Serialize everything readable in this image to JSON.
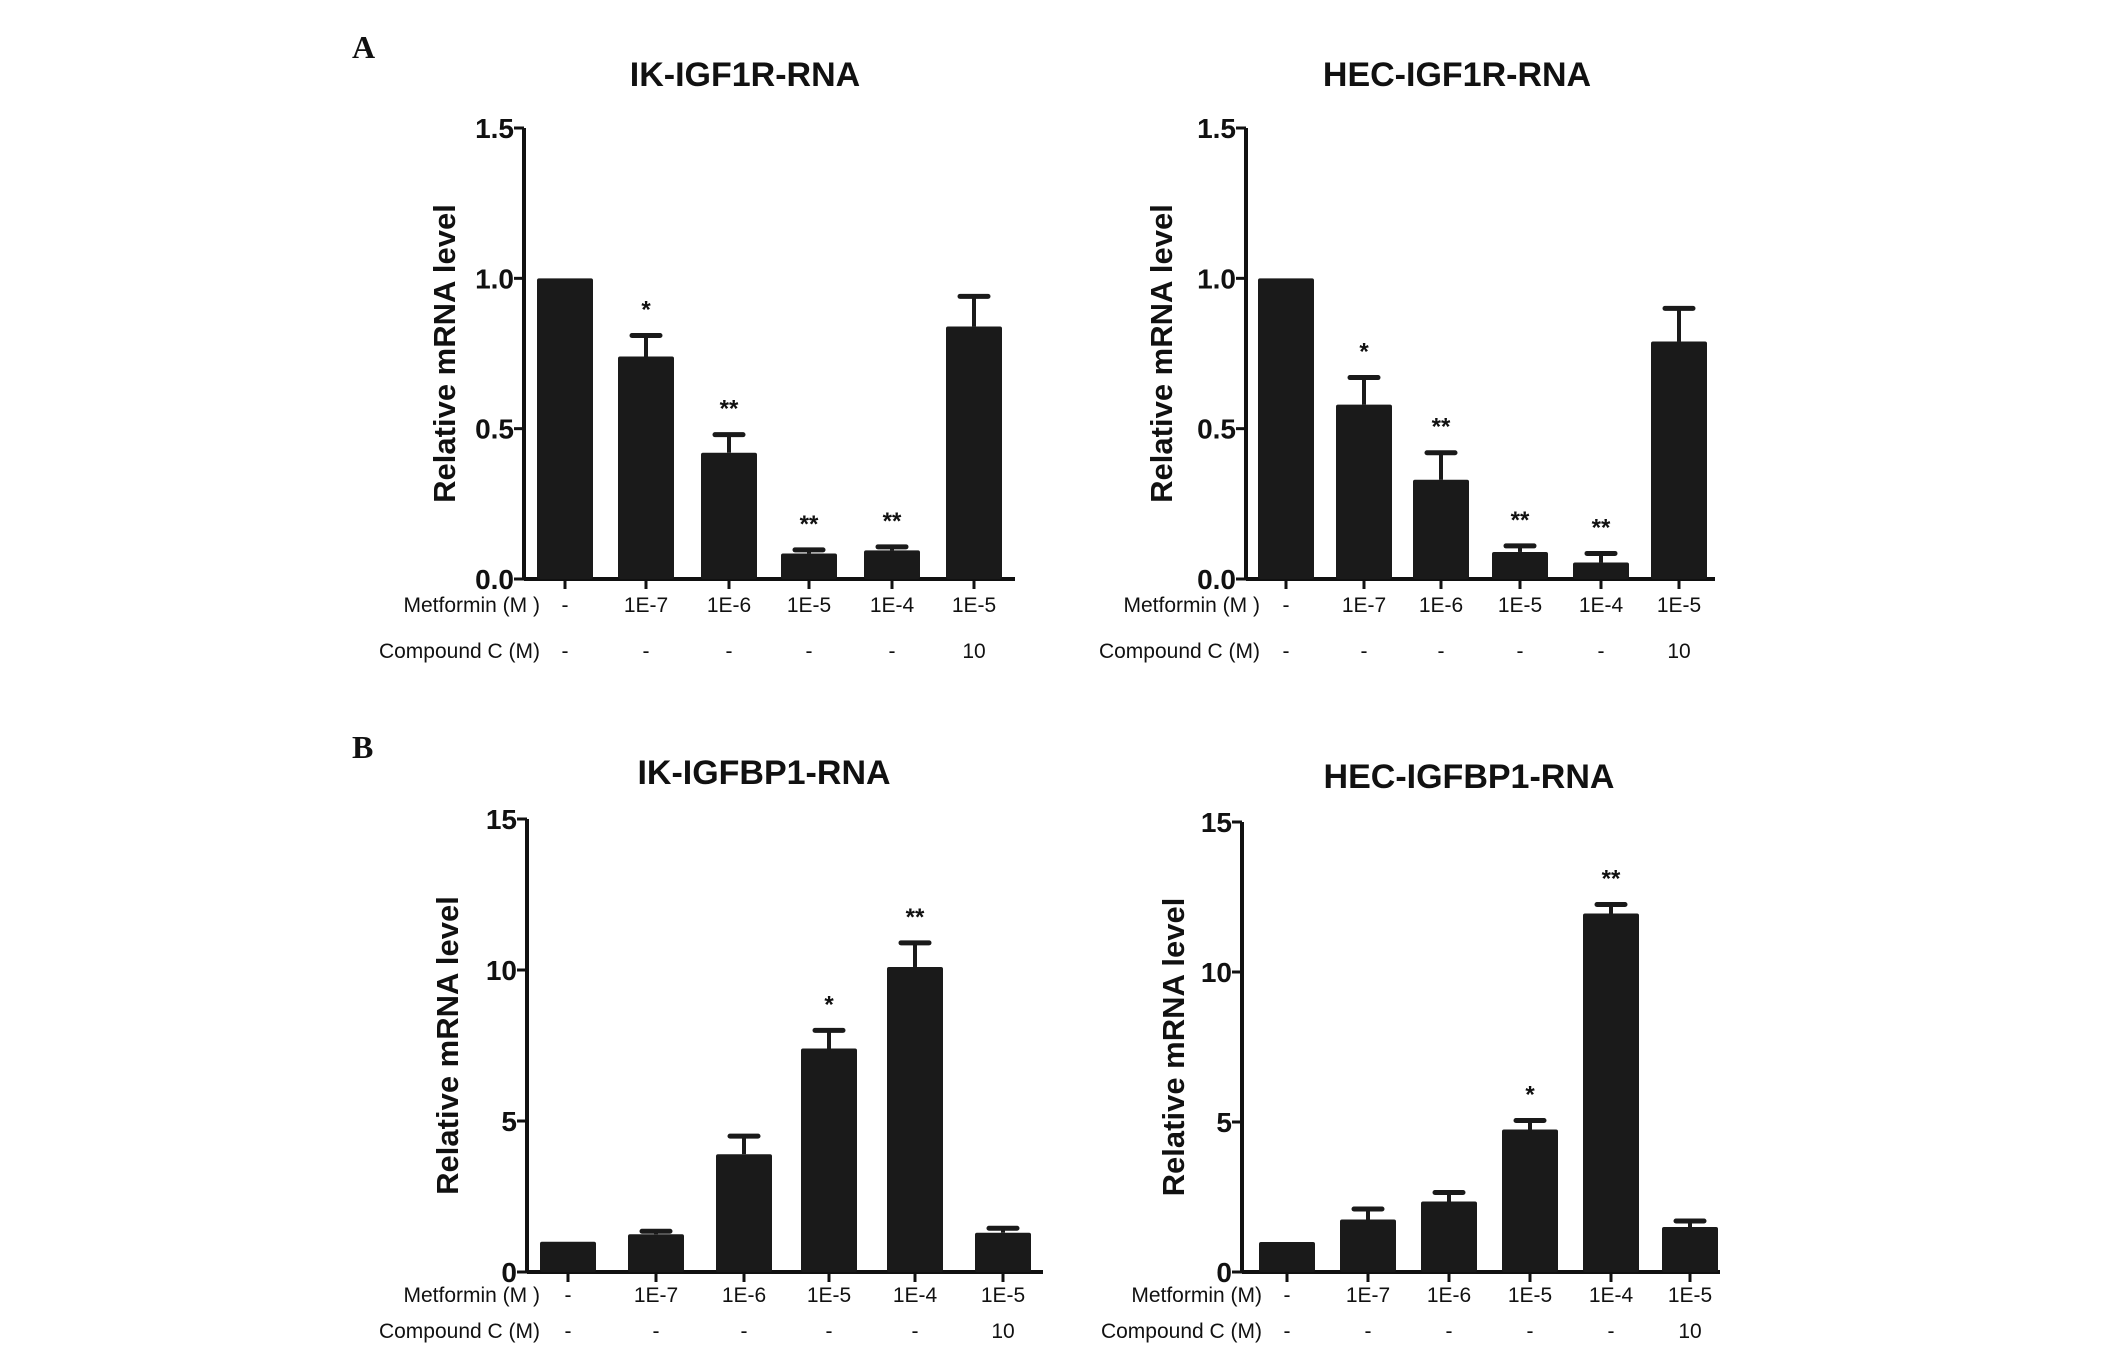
{
  "panel_labels": [
    "A",
    "B"
  ],
  "chart_data": [
    {
      "type": "bar",
      "title": "IK-IGF1R-RNA",
      "ylabel": "Relative mRNA level",
      "ylim": [
        0,
        1.5
      ],
      "yticks": [
        "0.0",
        "0.5",
        "1.0",
        "1.5"
      ],
      "ytick_values": [
        0,
        0.5,
        1.0,
        1.5
      ],
      "row_labels": [
        "Metformin (M )",
        "Compound C (M)"
      ],
      "metformin": [
        "-",
        "1E-7",
        "1E-6",
        "1E-5",
        "1E-4",
        "1E-5"
      ],
      "compound_c": [
        "-",
        "-",
        "-",
        "-",
        "-",
        "10"
      ],
      "values": [
        1.0,
        0.74,
        0.42,
        0.085,
        0.095,
        0.84
      ],
      "errors": [
        0,
        0.07,
        0.06,
        0.012,
        0.012,
        0.1
      ],
      "significance": [
        "",
        "*",
        "**",
        "**",
        "**",
        ""
      ]
    },
    {
      "type": "bar",
      "title": "HEC-IGF1R-RNA",
      "ylabel": "Relative mRNA level",
      "ylim": [
        0,
        1.5
      ],
      "yticks": [
        "0.0",
        "0.5",
        "1.0",
        "1.5"
      ],
      "ytick_values": [
        0,
        0.5,
        1.0,
        1.5
      ],
      "row_labels": [
        "Metformin (M )",
        "Compound C (M)"
      ],
      "metformin": [
        "-",
        "1E-7",
        "1E-6",
        "1E-5",
        "1E-4",
        "1E-5"
      ],
      "compound_c": [
        "-",
        "-",
        "-",
        "-",
        "-",
        "10"
      ],
      "values": [
        1.0,
        0.58,
        0.33,
        0.09,
        0.055,
        0.79
      ],
      "errors": [
        0,
        0.09,
        0.09,
        0.02,
        0.03,
        0.11
      ],
      "significance": [
        "",
        "*",
        "**",
        "**",
        "**",
        ""
      ]
    },
    {
      "type": "bar",
      "title": "IK-IGFBP1-RNA",
      "ylabel": "Relative mRNA level",
      "ylim": [
        0,
        15
      ],
      "yticks": [
        "0",
        "5",
        "10",
        "15"
      ],
      "ytick_values": [
        0,
        5,
        10,
        15
      ],
      "row_labels": [
        "Metformin (M )",
        "Compound C (M)"
      ],
      "metformin": [
        "-",
        "1E-7",
        "1E-6",
        "1E-5",
        "1E-4",
        "1E-5"
      ],
      "compound_c": [
        "-",
        "-",
        "-",
        "-",
        "-",
        "10"
      ],
      "values": [
        1.0,
        1.25,
        3.9,
        7.4,
        10.1,
        1.3
      ],
      "errors": [
        0,
        0.1,
        0.6,
        0.6,
        0.8,
        0.15
      ],
      "significance": [
        "",
        "",
        "",
        "*",
        "**",
        ""
      ]
    },
    {
      "type": "bar",
      "title": "HEC-IGFBP1-RNA",
      "ylabel": "Relative mRNA level",
      "ylim": [
        0,
        15
      ],
      "yticks": [
        "0",
        "5",
        "10",
        "15"
      ],
      "ytick_values": [
        0,
        5,
        10,
        15
      ],
      "row_labels": [
        "Metformin (M)",
        "Compound C (M)"
      ],
      "metformin": [
        "-",
        "1E-7",
        "1E-6",
        "1E-5",
        "1E-4",
        "1E-5"
      ],
      "compound_c": [
        "-",
        "-",
        "-",
        "-",
        "-",
        "10"
      ],
      "values": [
        1.0,
        1.75,
        2.35,
        4.75,
        11.95,
        1.5
      ],
      "errors": [
        0,
        0.35,
        0.3,
        0.3,
        0.3,
        0.2
      ],
      "significance": [
        "",
        "",
        "",
        "*",
        "**",
        ""
      ]
    }
  ]
}
